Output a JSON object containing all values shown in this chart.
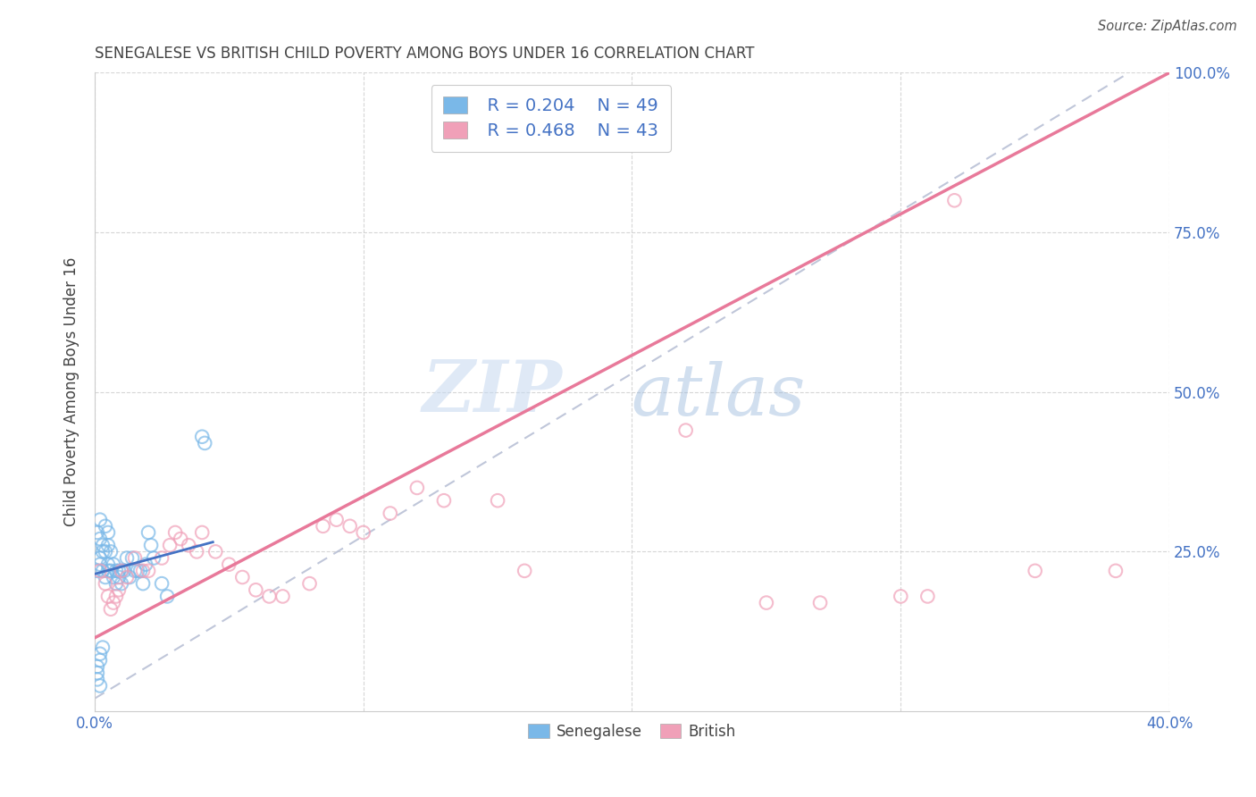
{
  "title": "SENEGALESE VS BRITISH CHILD POVERTY AMONG BOYS UNDER 16 CORRELATION CHART",
  "source": "Source: ZipAtlas.com",
  "ylabel": "Child Poverty Among Boys Under 16",
  "watermark_zip": "ZIP",
  "watermark_atlas": "atlas",
  "xlim": [
    0.0,
    0.4
  ],
  "ylim": [
    0.0,
    1.0
  ],
  "xtick_positions": [
    0.0,
    0.1,
    0.2,
    0.3,
    0.4
  ],
  "xtick_labels": [
    "0.0%",
    "",
    "",
    "",
    "40.0%"
  ],
  "ytick_positions": [
    0.25,
    0.5,
    0.75,
    1.0
  ],
  "ytick_labels": [
    "25.0%",
    "50.0%",
    "75.0%",
    "100.0%"
  ],
  "legend_r1": "R = 0.204",
  "legend_n1": "N = 49",
  "legend_r2": "R = 0.468",
  "legend_n2": "N = 43",
  "blue_color": "#7ab8e8",
  "pink_color": "#f0a0b8",
  "title_color": "#444444",
  "axis_label_color": "#444444",
  "tick_color": "#4472C4",
  "blue_line_color": "#4472C4",
  "pink_line_color": "#E8799A",
  "dashed_line_color": "#b0b8d0",
  "blue_scatter": [
    [
      0.001,
      0.22
    ],
    [
      0.001,
      0.28
    ],
    [
      0.002,
      0.3
    ],
    [
      0.002,
      0.27
    ],
    [
      0.002,
      0.24
    ],
    [
      0.002,
      0.23
    ],
    [
      0.003,
      0.26
    ],
    [
      0.003,
      0.25
    ],
    [
      0.003,
      0.22
    ],
    [
      0.004,
      0.29
    ],
    [
      0.004,
      0.25
    ],
    [
      0.004,
      0.21
    ],
    [
      0.005,
      0.28
    ],
    [
      0.005,
      0.26
    ],
    [
      0.005,
      0.23
    ],
    [
      0.005,
      0.22
    ],
    [
      0.006,
      0.25
    ],
    [
      0.006,
      0.22
    ],
    [
      0.007,
      0.23
    ],
    [
      0.007,
      0.21
    ],
    [
      0.008,
      0.22
    ],
    [
      0.008,
      0.2
    ],
    [
      0.009,
      0.21
    ],
    [
      0.009,
      0.22
    ],
    [
      0.01,
      0.22
    ],
    [
      0.01,
      0.2
    ],
    [
      0.011,
      0.22
    ],
    [
      0.012,
      0.24
    ],
    [
      0.013,
      0.21
    ],
    [
      0.014,
      0.24
    ],
    [
      0.015,
      0.22
    ],
    [
      0.016,
      0.22
    ],
    [
      0.017,
      0.22
    ],
    [
      0.018,
      0.2
    ],
    [
      0.019,
      0.23
    ],
    [
      0.02,
      0.28
    ],
    [
      0.021,
      0.26
    ],
    [
      0.022,
      0.24
    ],
    [
      0.025,
      0.2
    ],
    [
      0.027,
      0.18
    ],
    [
      0.001,
      0.07
    ],
    [
      0.001,
      0.06
    ],
    [
      0.002,
      0.08
    ],
    [
      0.002,
      0.09
    ],
    [
      0.003,
      0.1
    ],
    [
      0.001,
      0.05
    ],
    [
      0.002,
      0.04
    ],
    [
      0.04,
      0.43
    ],
    [
      0.041,
      0.42
    ]
  ],
  "pink_scatter": [
    [
      0.002,
      0.22
    ],
    [
      0.004,
      0.2
    ],
    [
      0.005,
      0.18
    ],
    [
      0.006,
      0.16
    ],
    [
      0.007,
      0.17
    ],
    [
      0.008,
      0.18
    ],
    [
      0.009,
      0.19
    ],
    [
      0.01,
      0.22
    ],
    [
      0.012,
      0.21
    ],
    [
      0.015,
      0.24
    ],
    [
      0.018,
      0.22
    ],
    [
      0.02,
      0.22
    ],
    [
      0.025,
      0.24
    ],
    [
      0.028,
      0.26
    ],
    [
      0.03,
      0.28
    ],
    [
      0.032,
      0.27
    ],
    [
      0.035,
      0.26
    ],
    [
      0.038,
      0.25
    ],
    [
      0.04,
      0.28
    ],
    [
      0.045,
      0.25
    ],
    [
      0.05,
      0.23
    ],
    [
      0.055,
      0.21
    ],
    [
      0.06,
      0.19
    ],
    [
      0.065,
      0.18
    ],
    [
      0.07,
      0.18
    ],
    [
      0.08,
      0.2
    ],
    [
      0.085,
      0.29
    ],
    [
      0.09,
      0.3
    ],
    [
      0.095,
      0.29
    ],
    [
      0.1,
      0.28
    ],
    [
      0.11,
      0.31
    ],
    [
      0.12,
      0.35
    ],
    [
      0.13,
      0.33
    ],
    [
      0.15,
      0.33
    ],
    [
      0.16,
      0.22
    ],
    [
      0.22,
      0.44
    ],
    [
      0.25,
      0.17
    ],
    [
      0.27,
      0.17
    ],
    [
      0.3,
      0.18
    ],
    [
      0.31,
      0.18
    ],
    [
      0.32,
      0.8
    ],
    [
      0.38,
      0.22
    ],
    [
      0.35,
      0.22
    ]
  ],
  "blue_line": [
    [
      0.0,
      0.215
    ],
    [
      0.044,
      0.265
    ]
  ],
  "pink_line": [
    [
      0.0,
      0.115
    ],
    [
      0.4,
      1.0
    ]
  ],
  "dashed_line": [
    [
      0.0,
      0.02
    ],
    [
      0.385,
      1.0
    ]
  ]
}
